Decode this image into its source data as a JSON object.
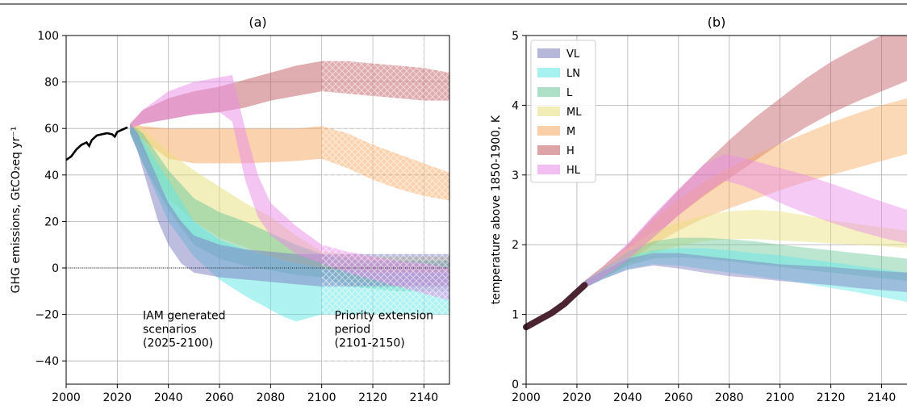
{
  "colors": {
    "VL": "#7c7cbf",
    "LN": "#5fe6e6",
    "L": "#6cc79a",
    "ML": "#e8df7a",
    "M": "#f6a85e",
    "H": "#c0595f",
    "HL": "#e98be8",
    "history": "#000000",
    "history_b": "#4a2430"
  },
  "chart_data": [
    {
      "panel": "a",
      "type": "area",
      "title": "(a)",
      "ylabel": "GHG emissions, GtCO₂eq yr⁻¹",
      "xlim": [
        2000,
        2150
      ],
      "ylim": [
        -50,
        100
      ],
      "xticks": [
        2000,
        2020,
        2040,
        2060,
        2080,
        2100,
        2120,
        2140
      ],
      "yticks": [
        -40,
        -20,
        0,
        20,
        40,
        60,
        80,
        100
      ],
      "xtick_labels": [
        "2000",
        "2020",
        "2040",
        "2060",
        "2080",
        "2100",
        "2120",
        "2140"
      ],
      "ytick_labels": [
        "−40",
        "−20",
        "0",
        "20",
        "40",
        "60",
        "80",
        "100"
      ],
      "grid": true,
      "zero_line": 0,
      "hatch_region": [
        2100,
        2150
      ],
      "annotations": [
        {
          "lines": [
            "IAM generated",
            "scenarios",
            "(2025-2100)"
          ],
          "x": 2030,
          "y": -22
        },
        {
          "lines": [
            "Priority extension",
            "period",
            "(2101-2150)"
          ],
          "x": 2105,
          "y": -22
        }
      ],
      "history": {
        "x": [
          2000,
          2002,
          2004,
          2006,
          2008,
          2009,
          2010,
          2012,
          2014,
          2016,
          2018,
          2019,
          2020,
          2022,
          2024
        ],
        "y": [
          46.5,
          48,
          51,
          53,
          54,
          52.5,
          55,
          57,
          57.5,
          58,
          57.5,
          56.5,
          58.5,
          59.5,
          60.5
        ]
      },
      "series": [
        {
          "name": "H",
          "x": [
            2025,
            2030,
            2040,
            2050,
            2060,
            2070,
            2080,
            2090,
            2100,
            2110,
            2120,
            2130,
            2140,
            2150
          ],
          "lo": [
            60,
            62,
            64,
            66,
            67,
            69,
            72,
            74,
            76,
            75,
            74,
            73,
            72,
            72
          ],
          "hi": [
            62,
            68,
            73,
            76,
            78,
            81,
            84,
            87,
            89,
            89,
            88,
            87,
            86,
            84
          ]
        },
        {
          "name": "M",
          "x": [
            2025,
            2030,
            2040,
            2050,
            2060,
            2070,
            2080,
            2090,
            2100,
            2110,
            2120,
            2130,
            2140,
            2150
          ],
          "lo": [
            60,
            55,
            47,
            45,
            45,
            45,
            45.5,
            46,
            47,
            43,
            38,
            34,
            31,
            29
          ],
          "hi": [
            62,
            61,
            60,
            60,
            60,
            60,
            60,
            60,
            61,
            58,
            53,
            49,
            45,
            41
          ]
        },
        {
          "name": "ML",
          "x": [
            2025,
            2030,
            2040,
            2050,
            2060,
            2070,
            2080,
            2090,
            2100,
            2110,
            2120,
            2130,
            2140,
            2150
          ],
          "lo": [
            58,
            50,
            30,
            20,
            13,
            9,
            5,
            2,
            0,
            -5,
            -7,
            -8,
            -8,
            -8
          ],
          "hi": [
            62,
            60,
            50,
            42,
            35,
            28,
            22,
            14,
            7,
            6,
            5,
            5,
            5,
            5
          ]
        },
        {
          "name": "L",
          "x": [
            2025,
            2030,
            2040,
            2050,
            2060,
            2070,
            2080,
            2090,
            2100,
            2110,
            2120,
            2130,
            2140,
            2150
          ],
          "lo": [
            58,
            45,
            25,
            10,
            4,
            1,
            -1,
            -3,
            -4,
            -8,
            -9,
            -10,
            -10,
            -10
          ],
          "hi": [
            62,
            58,
            42,
            30,
            24,
            20,
            15,
            10,
            6,
            4,
            3,
            3,
            3,
            3
          ]
        },
        {
          "name": "LN",
          "x": [
            2025,
            2030,
            2040,
            2050,
            2060,
            2070,
            2080,
            2085,
            2090,
            2100,
            2110,
            2120,
            2130,
            2140,
            2150
          ],
          "lo": [
            58,
            45,
            20,
            5,
            -5,
            -12,
            -18,
            -21,
            -23,
            -20,
            -20,
            -20,
            -20,
            -20,
            -20
          ],
          "hi": [
            62,
            55,
            38,
            20,
            12,
            8,
            5,
            3,
            2,
            0,
            -1,
            -2,
            -2,
            -2,
            -2
          ]
        },
        {
          "name": "VL",
          "x": [
            2025,
            2028,
            2032,
            2036,
            2040,
            2045,
            2050,
            2060,
            2070,
            2080,
            2090,
            2100,
            2110,
            2120,
            2130,
            2140,
            2150
          ],
          "lo": [
            58,
            50,
            35,
            20,
            10,
            2,
            -2,
            -4,
            -5,
            -6,
            -7,
            -8,
            -8,
            -8,
            -8,
            -8,
            -8
          ],
          "hi": [
            62,
            58,
            48,
            38,
            28,
            20,
            14,
            10,
            8,
            7,
            6,
            6,
            6,
            6,
            6,
            6,
            6
          ]
        },
        {
          "name": "HL",
          "x": [
            2025,
            2030,
            2040,
            2050,
            2060,
            2065,
            2070,
            2075,
            2080,
            2090,
            2100,
            2110,
            2120,
            2130,
            2140,
            2150
          ],
          "lo": [
            60,
            62,
            64,
            66,
            67,
            63,
            38,
            22,
            14,
            6,
            2,
            -2,
            -5,
            -8,
            -11,
            -14
          ],
          "hi": [
            62,
            68,
            76,
            80,
            82,
            83,
            60,
            40,
            28,
            18,
            10,
            7,
            5,
            3,
            2,
            0
          ]
        }
      ]
    },
    {
      "panel": "b",
      "type": "area",
      "title": "(b)",
      "ylabel": "temperature above 1850-1900, K",
      "xlim": [
        2000,
        2150
      ],
      "ylim": [
        0,
        5
      ],
      "xticks": [
        2000,
        2020,
        2040,
        2060,
        2080,
        2100,
        2120,
        2140
      ],
      "yticks": [
        0,
        1,
        2,
        3,
        4,
        5
      ],
      "xtick_labels": [
        "2000",
        "2020",
        "2040",
        "2060",
        "2080",
        "2100",
        "2120",
        "2140"
      ],
      "ytick_labels": [
        "0",
        "1",
        "2",
        "3",
        "4",
        "5"
      ],
      "grid": true,
      "legend": {
        "position": "top-left",
        "entries": [
          "VL",
          "LN",
          "L",
          "ML",
          "M",
          "H",
          "HL"
        ]
      },
      "history": {
        "x": [
          2000,
          2005,
          2010,
          2015,
          2020,
          2023
        ],
        "y": [
          0.82,
          0.92,
          1.02,
          1.15,
          1.32,
          1.42
        ]
      },
      "series": [
        {
          "name": "H",
          "x": [
            2023,
            2030,
            2040,
            2050,
            2060,
            2070,
            2080,
            2090,
            2100,
            2110,
            2120,
            2130,
            2140,
            2150
          ],
          "lo": [
            1.38,
            1.52,
            1.78,
            2.1,
            2.42,
            2.7,
            2.95,
            3.2,
            3.45,
            3.68,
            3.88,
            4.05,
            4.2,
            4.35
          ],
          "hi": [
            1.48,
            1.68,
            2.0,
            2.4,
            2.78,
            3.15,
            3.5,
            3.82,
            4.1,
            4.38,
            4.62,
            4.82,
            5.0,
            5.1
          ]
        },
        {
          "name": "M",
          "x": [
            2023,
            2030,
            2040,
            2050,
            2060,
            2070,
            2080,
            2090,
            2100,
            2110,
            2120,
            2130,
            2140,
            2150
          ],
          "lo": [
            1.38,
            1.52,
            1.75,
            2.0,
            2.2,
            2.38,
            2.52,
            2.65,
            2.78,
            2.9,
            3.0,
            3.1,
            3.2,
            3.3
          ],
          "hi": [
            1.48,
            1.68,
            1.98,
            2.35,
            2.65,
            2.9,
            3.1,
            3.28,
            3.45,
            3.6,
            3.75,
            3.88,
            4.0,
            4.1
          ]
        },
        {
          "name": "ML",
          "x": [
            2023,
            2030,
            2040,
            2050,
            2060,
            2070,
            2080,
            2090,
            2100,
            2110,
            2120,
            2130,
            2140,
            2150
          ],
          "lo": [
            1.38,
            1.52,
            1.72,
            1.88,
            1.98,
            2.05,
            2.08,
            2.08,
            2.06,
            2.04,
            2.02,
            2.0,
            1.98,
            1.95
          ],
          "hi": [
            1.48,
            1.68,
            1.95,
            2.18,
            2.32,
            2.42,
            2.48,
            2.5,
            2.48,
            2.42,
            2.35,
            2.3,
            2.25,
            2.2
          ]
        },
        {
          "name": "L",
          "x": [
            2023,
            2030,
            2040,
            2050,
            2060,
            2070,
            2080,
            2090,
            2100,
            2110,
            2120,
            2130,
            2140,
            2150
          ],
          "lo": [
            1.38,
            1.52,
            1.7,
            1.8,
            1.82,
            1.8,
            1.76,
            1.72,
            1.68,
            1.64,
            1.6,
            1.56,
            1.52,
            1.48
          ],
          "hi": [
            1.48,
            1.66,
            1.9,
            2.05,
            2.1,
            2.1,
            2.08,
            2.05,
            2.0,
            1.96,
            1.92,
            1.88,
            1.84,
            1.8
          ]
        },
        {
          "name": "LN",
          "x": [
            2023,
            2030,
            2040,
            2050,
            2060,
            2070,
            2080,
            2090,
            2100,
            2110,
            2120,
            2130,
            2140,
            2150
          ],
          "lo": [
            1.38,
            1.5,
            1.65,
            1.72,
            1.7,
            1.65,
            1.6,
            1.55,
            1.5,
            1.44,
            1.38,
            1.32,
            1.25,
            1.18
          ],
          "hi": [
            1.48,
            1.64,
            1.82,
            1.92,
            1.95,
            1.95,
            1.92,
            1.88,
            1.85,
            1.8,
            1.75,
            1.7,
            1.65,
            1.6
          ]
        },
        {
          "name": "VL",
          "x": [
            2023,
            2030,
            2040,
            2050,
            2060,
            2070,
            2080,
            2090,
            2100,
            2110,
            2120,
            2130,
            2140,
            2150
          ],
          "lo": [
            1.38,
            1.5,
            1.64,
            1.7,
            1.66,
            1.6,
            1.55,
            1.52,
            1.48,
            1.45,
            1.42,
            1.38,
            1.35,
            1.32
          ],
          "hi": [
            1.48,
            1.62,
            1.8,
            1.88,
            1.88,
            1.84,
            1.8,
            1.76,
            1.72,
            1.7,
            1.68,
            1.65,
            1.62,
            1.6
          ]
        },
        {
          "name": "HL",
          "x": [
            2023,
            2030,
            2040,
            2050,
            2060,
            2070,
            2078,
            2085,
            2090,
            2100,
            2110,
            2120,
            2130,
            2140,
            2150
          ],
          "lo": [
            1.38,
            1.52,
            1.78,
            2.1,
            2.42,
            2.72,
            2.92,
            2.85,
            2.78,
            2.6,
            2.45,
            2.32,
            2.2,
            2.1,
            2.02
          ],
          "hi": [
            1.48,
            1.68,
            2.02,
            2.42,
            2.8,
            3.15,
            3.3,
            3.25,
            3.2,
            3.1,
            3.0,
            2.88,
            2.75,
            2.62,
            2.5
          ]
        }
      ]
    }
  ]
}
